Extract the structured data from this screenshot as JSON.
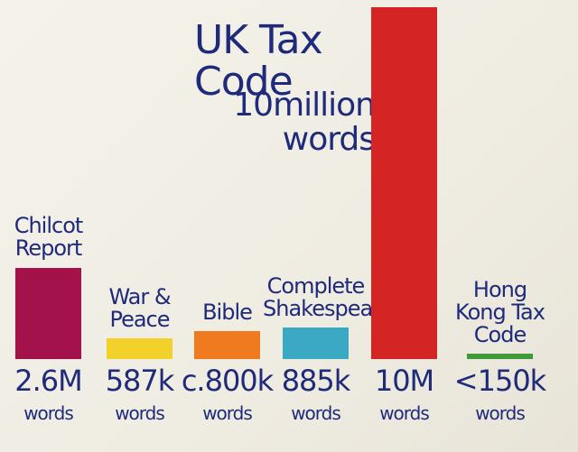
{
  "chart_data": {
    "type": "bar",
    "categories": [
      "Chilcot Report",
      "War & Peace",
      "Bible",
      "Complete Shakespeare",
      "UK Tax Code",
      "Hong Kong Tax Code"
    ],
    "values": [
      2600000,
      587000,
      800000,
      885000,
      10000000,
      150000
    ],
    "value_labels": [
      "2.6M",
      "587k",
      "c.800k",
      "885k",
      "10M",
      "<150k"
    ],
    "unit": "words",
    "annotation": "10million words",
    "colors": [
      "#a3124a",
      "#f2d22a",
      "#f07a20",
      "#3ba9c4",
      "#d42424",
      "#3f9a3a"
    ],
    "ylim": [
      0,
      10000000
    ]
  }
}
